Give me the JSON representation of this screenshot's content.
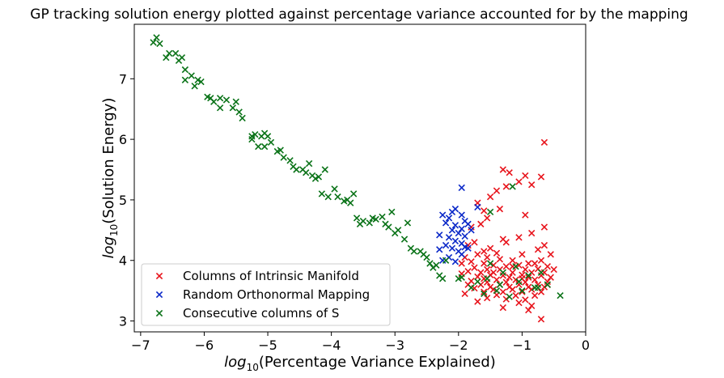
{
  "chart_data": {
    "type": "scatter",
    "title": "GP tracking solution energy plotted against percentage variance accounted for by the mapping",
    "xlabel": {
      "base": "log",
      "sub": "10",
      "rest": "(Percentage Variance Explained)"
    },
    "ylabel": {
      "base": "log",
      "sub": "10",
      "rest": "(Solution Energy)"
    },
    "xlim": [
      -7.1,
      0
    ],
    "ylim": [
      2.82,
      7.9
    ],
    "xticks": [
      -7,
      -6,
      -5,
      -4,
      -3,
      -2,
      -1,
      0
    ],
    "yticks": [
      3,
      4,
      5,
      6,
      7
    ],
    "xtick_labels": [
      "−7",
      "−6",
      "−5",
      "−4",
      "−3",
      "−2",
      "−1",
      "0"
    ],
    "ytick_labels": [
      "3",
      "4",
      "5",
      "6",
      "7"
    ],
    "legend_position": "lower-left",
    "series": [
      {
        "name": "Columns of Intrinsic Manifold",
        "color": "#e8141c",
        "points": [
          [
            -0.65,
            5.95
          ],
          [
            -1.3,
            5.5
          ],
          [
            -1.2,
            5.45
          ],
          [
            -0.95,
            5.4
          ],
          [
            -0.7,
            5.38
          ],
          [
            -1.05,
            5.3
          ],
          [
            -1.25,
            5.22
          ],
          [
            -1.4,
            5.15
          ],
          [
            -0.85,
            5.25
          ],
          [
            -1.5,
            5.05
          ],
          [
            -1.7,
            4.95
          ],
          [
            -1.35,
            4.85
          ],
          [
            -1.6,
            4.82
          ],
          [
            -1.55,
            4.7
          ],
          [
            -1.65,
            4.6
          ],
          [
            -1.8,
            4.55
          ],
          [
            -0.95,
            4.75
          ],
          [
            -0.65,
            4.55
          ],
          [
            -0.85,
            4.45
          ],
          [
            -1.75,
            4.3
          ],
          [
            -1.85,
            4.25
          ],
          [
            -1.3,
            4.35
          ],
          [
            -1.25,
            4.3
          ],
          [
            -1.05,
            4.38
          ],
          [
            -0.65,
            4.25
          ],
          [
            -1.5,
            4.2
          ],
          [
            -1.6,
            4.15
          ],
          [
            -0.75,
            4.18
          ],
          [
            -1.4,
            4.12
          ],
          [
            -1.7,
            4.1
          ],
          [
            -1.0,
            4.1
          ],
          [
            -0.55,
            4.1
          ],
          [
            -1.9,
            4.05
          ],
          [
            -1.35,
            4.02
          ],
          [
            -1.15,
            4.0
          ],
          [
            -0.7,
            4.0
          ],
          [
            -1.8,
            3.98
          ],
          [
            -1.6,
            3.95
          ],
          [
            -0.9,
            3.95
          ],
          [
            -1.45,
            3.92
          ],
          [
            -1.25,
            3.9
          ],
          [
            -1.05,
            3.92
          ],
          [
            -0.6,
            3.9
          ],
          [
            -1.75,
            3.88
          ],
          [
            -1.55,
            3.85
          ],
          [
            -1.35,
            3.85
          ],
          [
            -0.95,
            3.85
          ],
          [
            -0.75,
            3.86
          ],
          [
            -1.85,
            3.82
          ],
          [
            -1.65,
            3.8
          ],
          [
            -1.45,
            3.8
          ],
          [
            -1.15,
            3.8
          ],
          [
            -0.85,
            3.8
          ],
          [
            -0.65,
            3.8
          ],
          [
            -1.95,
            3.78
          ],
          [
            -1.5,
            3.76
          ],
          [
            -1.3,
            3.75
          ],
          [
            -1.0,
            3.76
          ],
          [
            -0.7,
            3.75
          ],
          [
            -1.7,
            3.73
          ],
          [
            -1.2,
            3.72
          ],
          [
            -0.9,
            3.72
          ],
          [
            -0.55,
            3.72
          ],
          [
            -1.6,
            3.7
          ],
          [
            -1.4,
            3.68
          ],
          [
            -1.1,
            3.68
          ],
          [
            -0.8,
            3.68
          ],
          [
            -1.8,
            3.66
          ],
          [
            -1.55,
            3.64
          ],
          [
            -1.25,
            3.64
          ],
          [
            -0.95,
            3.64
          ],
          [
            -0.6,
            3.65
          ],
          [
            -1.65,
            3.6
          ],
          [
            -1.35,
            3.6
          ],
          [
            -1.05,
            3.6
          ],
          [
            -0.75,
            3.6
          ],
          [
            -1.5,
            3.56
          ],
          [
            -1.2,
            3.56
          ],
          [
            -0.9,
            3.56
          ],
          [
            -0.65,
            3.56
          ],
          [
            -1.75,
            3.54
          ],
          [
            -1.45,
            3.52
          ],
          [
            -1.15,
            3.52
          ],
          [
            -0.85,
            3.52
          ],
          [
            -1.6,
            3.48
          ],
          [
            -1.3,
            3.48
          ],
          [
            -1.0,
            3.48
          ],
          [
            -0.7,
            3.48
          ],
          [
            -1.9,
            3.45
          ],
          [
            -1.4,
            3.43
          ],
          [
            -1.1,
            3.42
          ],
          [
            -0.8,
            3.42
          ],
          [
            -1.55,
            3.38
          ],
          [
            -1.25,
            3.36
          ],
          [
            -0.95,
            3.35
          ],
          [
            -1.7,
            3.32
          ],
          [
            -1.05,
            3.3
          ],
          [
            -0.85,
            3.25
          ],
          [
            -1.3,
            3.22
          ],
          [
            -0.9,
            3.18
          ],
          [
            -0.7,
            3.03
          ],
          [
            -1.95,
            3.95
          ],
          [
            -1.55,
            4.05
          ],
          [
            -1.15,
            3.9
          ],
          [
            -0.8,
            3.95
          ],
          [
            -0.5,
            3.85
          ],
          [
            -1.85,
            3.6
          ],
          [
            -1.0,
            3.7
          ],
          [
            -0.6,
            3.6
          ]
        ]
      },
      {
        "name": "Random Orthonormal Mapping",
        "color": "#0a28c8",
        "points": [
          [
            -1.95,
            5.2
          ],
          [
            -2.05,
            4.85
          ],
          [
            -1.7,
            4.88
          ],
          [
            -2.1,
            4.8
          ],
          [
            -2.25,
            4.75
          ],
          [
            -1.95,
            4.75
          ],
          [
            -2.15,
            4.7
          ],
          [
            -1.9,
            4.65
          ],
          [
            -2.2,
            4.62
          ],
          [
            -1.85,
            4.6
          ],
          [
            -2.05,
            4.58
          ],
          [
            -1.95,
            4.52
          ],
          [
            -2.1,
            4.5
          ],
          [
            -1.8,
            4.5
          ],
          [
            -2.0,
            4.45
          ],
          [
            -2.3,
            4.42
          ],
          [
            -2.15,
            4.38
          ],
          [
            -1.9,
            4.4
          ],
          [
            -2.05,
            4.32
          ],
          [
            -1.95,
            4.28
          ],
          [
            -2.2,
            4.25
          ],
          [
            -2.1,
            4.2
          ],
          [
            -2.3,
            4.18
          ],
          [
            -1.85,
            4.2
          ],
          [
            -2.0,
            4.15
          ],
          [
            -1.95,
            4.1
          ],
          [
            -2.15,
            4.05
          ],
          [
            -2.25,
            4.0
          ],
          [
            -2.05,
            3.98
          ],
          [
            -1.9,
            4.22
          ]
        ]
      },
      {
        "name": "Consecutive columns of S",
        "color": "#0a7318",
        "points": [
          [
            -6.75,
            7.68
          ],
          [
            -6.8,
            7.6
          ],
          [
            -6.7,
            7.58
          ],
          [
            -6.55,
            7.42
          ],
          [
            -6.45,
            7.42
          ],
          [
            -6.6,
            7.35
          ],
          [
            -6.35,
            7.35
          ],
          [
            -6.4,
            7.3
          ],
          [
            -6.3,
            7.15
          ],
          [
            -6.2,
            7.05
          ],
          [
            -6.3,
            6.98
          ],
          [
            -6.1,
            6.98
          ],
          [
            -6.05,
            6.95
          ],
          [
            -6.15,
            6.88
          ],
          [
            -5.95,
            6.7
          ],
          [
            -5.9,
            6.68
          ],
          [
            -5.75,
            6.68
          ],
          [
            -5.65,
            6.65
          ],
          [
            -5.85,
            6.62
          ],
          [
            -5.5,
            6.62
          ],
          [
            -5.55,
            6.52
          ],
          [
            -5.75,
            6.52
          ],
          [
            -5.45,
            6.45
          ],
          [
            -5.4,
            6.35
          ],
          [
            -5.25,
            6.05
          ],
          [
            -5.2,
            6.08
          ],
          [
            -5.25,
            6.0
          ],
          [
            -5.1,
            6.05
          ],
          [
            -5.0,
            6.05
          ],
          [
            -5.05,
            6.1
          ],
          [
            -4.95,
            5.95
          ],
          [
            -5.15,
            5.88
          ],
          [
            -5.05,
            5.88
          ],
          [
            -4.85,
            5.8
          ],
          [
            -4.8,
            5.82
          ],
          [
            -4.75,
            5.7
          ],
          [
            -4.65,
            5.65
          ],
          [
            -4.6,
            5.55
          ],
          [
            -4.55,
            5.5
          ],
          [
            -4.45,
            5.5
          ],
          [
            -4.4,
            5.45
          ],
          [
            -4.35,
            5.6
          ],
          [
            -4.3,
            5.4
          ],
          [
            -4.2,
            5.38
          ],
          [
            -4.25,
            5.35
          ],
          [
            -4.1,
            5.5
          ],
          [
            -4.15,
            5.1
          ],
          [
            -4.05,
            5.05
          ],
          [
            -3.95,
            5.18
          ],
          [
            -3.9,
            5.05
          ],
          [
            -3.8,
            4.98
          ],
          [
            -3.75,
            5.0
          ],
          [
            -3.7,
            4.95
          ],
          [
            -3.65,
            5.1
          ],
          [
            -3.6,
            4.7
          ],
          [
            -3.55,
            4.6
          ],
          [
            -3.5,
            4.65
          ],
          [
            -3.4,
            4.62
          ],
          [
            -3.35,
            4.7
          ],
          [
            -3.3,
            4.68
          ],
          [
            -3.2,
            4.72
          ],
          [
            -3.15,
            4.6
          ],
          [
            -3.1,
            4.55
          ],
          [
            -3.05,
            4.8
          ],
          [
            -3.0,
            4.45
          ],
          [
            -2.95,
            4.5
          ],
          [
            -2.85,
            4.35
          ],
          [
            -2.8,
            4.62
          ],
          [
            -2.75,
            4.2
          ],
          [
            -2.7,
            4.15
          ],
          [
            -2.6,
            4.15
          ],
          [
            -2.55,
            4.1
          ],
          [
            -2.5,
            4.05
          ],
          [
            -2.45,
            3.95
          ],
          [
            -2.4,
            3.88
          ],
          [
            -2.35,
            3.92
          ],
          [
            -2.3,
            3.75
          ],
          [
            -2.25,
            3.7
          ],
          [
            -2.2,
            4.0
          ],
          [
            -2.0,
            3.7
          ],
          [
            -1.95,
            3.72
          ],
          [
            -1.8,
            3.55
          ],
          [
            -1.6,
            3.45
          ],
          [
            -1.4,
            3.5
          ],
          [
            -1.2,
            3.4
          ],
          [
            -1.0,
            3.5
          ],
          [
            -0.8,
            3.55
          ],
          [
            -0.6,
            3.6
          ],
          [
            -0.4,
            3.42
          ],
          [
            -1.1,
            3.9
          ],
          [
            -1.3,
            3.8
          ],
          [
            -1.55,
            3.7
          ],
          [
            -0.9,
            3.75
          ],
          [
            -0.7,
            3.8
          ],
          [
            -1.7,
            3.65
          ],
          [
            -1.5,
            3.95
          ],
          [
            -1.05,
            3.65
          ],
          [
            -1.35,
            3.6
          ],
          [
            -0.75,
            3.55
          ],
          [
            -1.15,
            5.22
          ],
          [
            -1.5,
            4.8
          ]
        ]
      }
    ]
  }
}
